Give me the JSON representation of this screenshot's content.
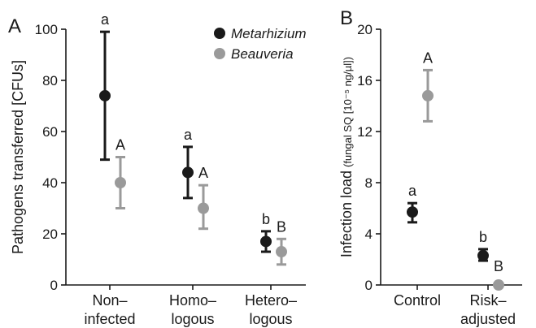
{
  "chart_data": [
    {
      "panel": "A",
      "type": "scatter",
      "categories": [
        [
          "Non–",
          "infected"
        ],
        [
          "Homo–",
          "logous"
        ],
        [
          "Hetero–",
          "logous"
        ]
      ],
      "ylabel": "Pathogens transferred [CFUs]",
      "ylim": [
        0,
        100
      ],
      "yticks": [
        0,
        20,
        40,
        60,
        80,
        100
      ],
      "legend": {
        "placement": "top-right",
        "entries": [
          "Metarhizium",
          "Beauveria"
        ]
      },
      "series": [
        {
          "name": "Metarhizium",
          "color": "#1a1a1a",
          "values": [
            74,
            44,
            17
          ],
          "lower": [
            49,
            34,
            13
          ],
          "upper": [
            99,
            54,
            21
          ],
          "letters": [
            "a",
            "a",
            "b"
          ]
        },
        {
          "name": "Beauveria",
          "color": "#9a9a9a",
          "values": [
            40,
            30,
            13
          ],
          "lower": [
            30,
            22,
            8
          ],
          "upper": [
            50,
            39,
            18
          ],
          "letters": [
            "A",
            "A",
            "B"
          ]
        }
      ]
    },
    {
      "panel": "B",
      "type": "scatter",
      "categories": [
        [
          "Control"
        ],
        [
          "Risk–",
          "adjusted"
        ]
      ],
      "ylabel": "Infection load",
      "ylabel_unit": "(fungal SQ [10⁻⁵ ng/µl])",
      "ylim": [
        0,
        20
      ],
      "yticks": [
        0,
        4,
        8,
        12,
        16,
        20
      ],
      "series": [
        {
          "name": "Metarhizium",
          "color": "#1a1a1a",
          "values": [
            5.7,
            2.3
          ],
          "lower": [
            4.9,
            1.9
          ],
          "upper": [
            6.4,
            2.8
          ],
          "letters": [
            "a",
            "b"
          ]
        },
        {
          "name": "Beauveria",
          "color": "#9a9a9a",
          "values": [
            14.8,
            0
          ],
          "lower": [
            12.8,
            0
          ],
          "upper": [
            16.8,
            0
          ],
          "letters": [
            "A",
            "B"
          ]
        }
      ]
    }
  ]
}
